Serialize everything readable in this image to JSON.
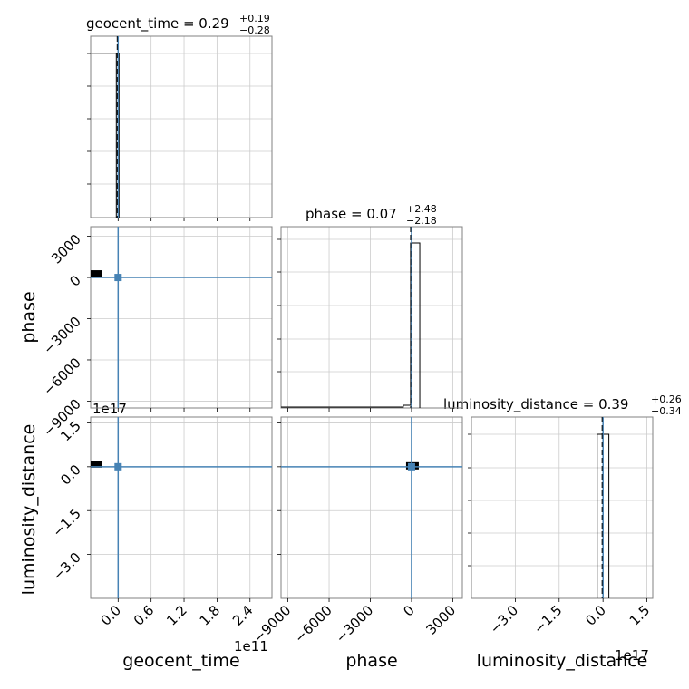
{
  "chart_data": {
    "type": "corner",
    "grid": true,
    "truth_color": "#4682b4",
    "hist_color": "#000000",
    "parameters": [
      "geocent_time",
      "phase",
      "luminosity_distance"
    ],
    "titles": [
      {
        "name": "geocent_time",
        "median": "0.29",
        "plus": "+0.19",
        "minus": "−0.28"
      },
      {
        "name": "phase",
        "median": "0.07",
        "plus": "+2.48",
        "minus": "−2.18"
      },
      {
        "name": "luminosity_distance",
        "median": "0.39",
        "plus": "+0.26",
        "minus": "−0.34"
      }
    ],
    "offsets": {
      "geocent_time": "1e11",
      "luminosity_distance": "1e17",
      "phase_ld_panel": "1e17"
    },
    "ranges": {
      "geocent_time": [
        -0.05,
        0.28
      ],
      "phase": [
        -9500,
        3700
      ],
      "luminosity_distance": [
        -4.5,
        1.7
      ]
    },
    "ticks": {
      "geocent_time": {
        "values": [
          0.0,
          0.06,
          0.12,
          0.18,
          0.24
        ],
        "labels": [
          "0.0",
          "0.6",
          "1.2",
          "1.8",
          "2.4"
        ]
      },
      "phase_x": {
        "values": [
          -9000,
          -6000,
          -3000,
          0,
          3000
        ],
        "labels": [
          "−9000",
          "−6000",
          "−3000",
          "0",
          "3000"
        ]
      },
      "phase_y": {
        "values": [
          3000,
          0,
          -3000,
          -6000,
          -9000
        ],
        "labels": [
          "3000",
          "0",
          "−3000",
          "−6000",
          "−9000"
        ]
      },
      "luminosity_distance_x": {
        "values": [
          -3.0,
          -1.5,
          0.0,
          1.5
        ],
        "labels": [
          "−3.0",
          "−1.5",
          "0.0",
          "1.5"
        ]
      },
      "luminosity_distance_y": {
        "values": [
          1.5,
          0.0,
          -1.5,
          -3.0
        ],
        "labels": [
          "1.5",
          "0.0",
          "−1.5",
          "−3.0"
        ]
      }
    },
    "injection": {
      "geocent_time": 0.0,
      "phase": 0.07,
      "luminosity_distance": 0.0
    }
  }
}
